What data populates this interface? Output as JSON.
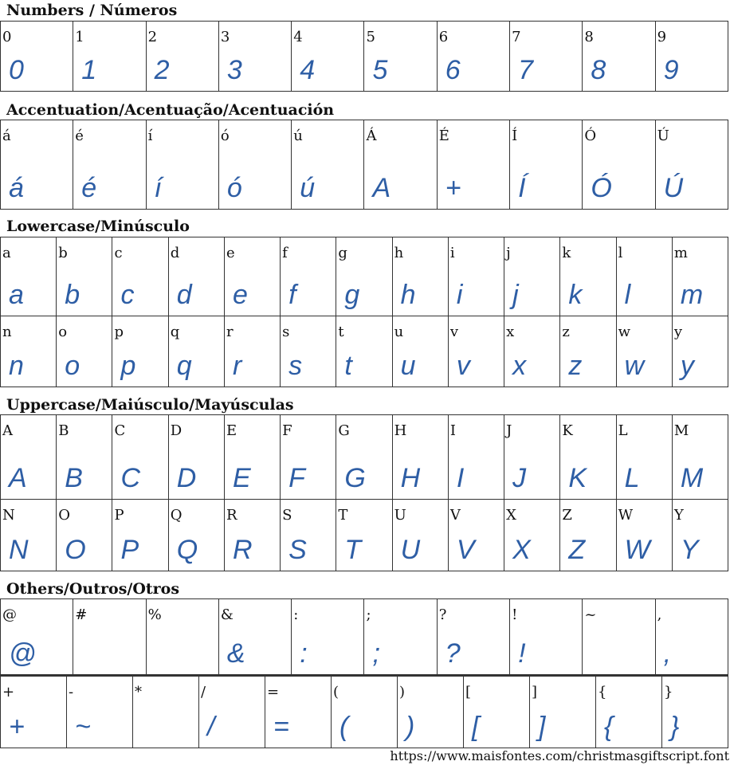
{
  "sections": [
    {
      "title": "Numbers / Números",
      "rows": [
        [
          {
            "label": "0",
            "glyph": "0"
          },
          {
            "label": "1",
            "glyph": "1"
          },
          {
            "label": "2",
            "glyph": "2"
          },
          {
            "label": "3",
            "glyph": "3"
          },
          {
            "label": "4",
            "glyph": "4"
          },
          {
            "label": "5",
            "glyph": "5"
          },
          {
            "label": "6",
            "glyph": "6"
          },
          {
            "label": "7",
            "glyph": "7"
          },
          {
            "label": "8",
            "glyph": "8"
          },
          {
            "label": "9",
            "glyph": "9"
          }
        ]
      ]
    },
    {
      "title": "Accentuation/Acentuação/Acentuación",
      "rows": [
        [
          {
            "label": "á",
            "glyph": "á"
          },
          {
            "label": "é",
            "glyph": "é"
          },
          {
            "label": "í",
            "glyph": "í"
          },
          {
            "label": "ó",
            "glyph": "ó"
          },
          {
            "label": "ú",
            "glyph": "ú"
          },
          {
            "label": "Á",
            "glyph": "A"
          },
          {
            "label": "É",
            "glyph": "+"
          },
          {
            "label": "Í",
            "glyph": "Í"
          },
          {
            "label": "Ó",
            "glyph": "Ó"
          },
          {
            "label": "Ú",
            "glyph": "Ú"
          }
        ]
      ]
    },
    {
      "title": "Lowercase/Minúsculo",
      "rows": [
        [
          {
            "label": "a",
            "glyph": "a"
          },
          {
            "label": "b",
            "glyph": "b"
          },
          {
            "label": "c",
            "glyph": "c"
          },
          {
            "label": "d",
            "glyph": "d"
          },
          {
            "label": "e",
            "glyph": "e"
          },
          {
            "label": "f",
            "glyph": "f"
          },
          {
            "label": "g",
            "glyph": "g"
          },
          {
            "label": "h",
            "glyph": "h"
          },
          {
            "label": "i",
            "glyph": "i"
          },
          {
            "label": "j",
            "glyph": "j"
          },
          {
            "label": "k",
            "glyph": "k"
          },
          {
            "label": "l",
            "glyph": "l"
          },
          {
            "label": "m",
            "glyph": "m"
          }
        ],
        [
          {
            "label": "n",
            "glyph": "n"
          },
          {
            "label": "o",
            "glyph": "o"
          },
          {
            "label": "p",
            "glyph": "p"
          },
          {
            "label": "q",
            "glyph": "q"
          },
          {
            "label": "r",
            "glyph": "r"
          },
          {
            "label": "s",
            "glyph": "s"
          },
          {
            "label": "t",
            "glyph": "t"
          },
          {
            "label": "u",
            "glyph": "u"
          },
          {
            "label": "v",
            "glyph": "v"
          },
          {
            "label": "x",
            "glyph": "x"
          },
          {
            "label": "z",
            "glyph": "z"
          },
          {
            "label": "w",
            "glyph": "w"
          },
          {
            "label": "y",
            "glyph": "y"
          }
        ]
      ]
    },
    {
      "title": "Uppercase/Maiúsculo/Mayúsculas",
      "rows": [
        [
          {
            "label": "A",
            "glyph": "A"
          },
          {
            "label": "B",
            "glyph": "B"
          },
          {
            "label": "C",
            "glyph": "C"
          },
          {
            "label": "D",
            "glyph": "D"
          },
          {
            "label": "E",
            "glyph": "E"
          },
          {
            "label": "F",
            "glyph": "F"
          },
          {
            "label": "G",
            "glyph": "G"
          },
          {
            "label": "H",
            "glyph": "H"
          },
          {
            "label": "I",
            "glyph": "I"
          },
          {
            "label": "J",
            "glyph": "J"
          },
          {
            "label": "K",
            "glyph": "K"
          },
          {
            "label": "L",
            "glyph": "L"
          },
          {
            "label": "M",
            "glyph": "M"
          }
        ],
        [
          {
            "label": "N",
            "glyph": "N"
          },
          {
            "label": "O",
            "glyph": "O"
          },
          {
            "label": "P",
            "glyph": "P"
          },
          {
            "label": "Q",
            "glyph": "Q"
          },
          {
            "label": "R",
            "glyph": "R"
          },
          {
            "label": "S",
            "glyph": "S"
          },
          {
            "label": "T",
            "glyph": "T"
          },
          {
            "label": "U",
            "glyph": "U"
          },
          {
            "label": "V",
            "glyph": "V"
          },
          {
            "label": "X",
            "glyph": "X"
          },
          {
            "label": "Z",
            "glyph": "Z"
          },
          {
            "label": "W",
            "glyph": "W"
          },
          {
            "label": "Y",
            "glyph": "Y"
          }
        ]
      ]
    },
    {
      "title": "Others/Outros/Otros",
      "rows": [
        [
          {
            "label": "@",
            "glyph": "@"
          },
          {
            "label": "#",
            "glyph": ""
          },
          {
            "label": "%",
            "glyph": ""
          },
          {
            "label": "&",
            "glyph": "&"
          },
          {
            "label": ":",
            "glyph": ":"
          },
          {
            "label": ";",
            "glyph": ";"
          },
          {
            "label": "?",
            "glyph": "?"
          },
          {
            "label": "!",
            "glyph": "!"
          },
          {
            "label": "~",
            "glyph": ""
          },
          {
            "label": ",",
            "glyph": ","
          }
        ],
        [
          {
            "label": "+",
            "glyph": "+"
          },
          {
            "label": "-",
            "glyph": "~"
          },
          {
            "label": "*",
            "glyph": ""
          },
          {
            "label": "/",
            "glyph": "/"
          },
          {
            "label": "=",
            "glyph": "="
          },
          {
            "label": "(",
            "glyph": "("
          },
          {
            "label": ")",
            "glyph": ")"
          },
          {
            "label": "[",
            "glyph": "["
          },
          {
            "label": "]",
            "glyph": "]"
          },
          {
            "label": "{",
            "glyph": "{"
          },
          {
            "label": "}",
            "glyph": "}"
          }
        ]
      ]
    }
  ],
  "footer": {
    "url": "https://www.maisfontes.com/christmasgiftscript.font"
  },
  "colors": {
    "glyph": "#2e5ea5",
    "border": "#333333"
  }
}
